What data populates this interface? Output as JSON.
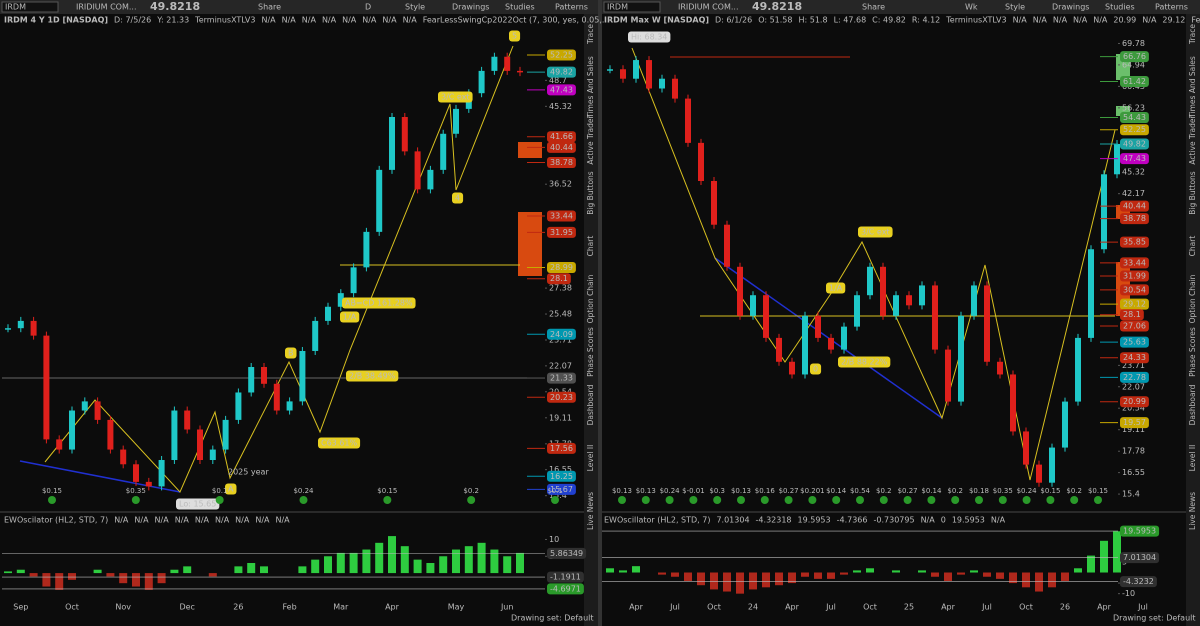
{
  "toolbars": [
    {
      "symbol": "IRDM",
      "company": "IRIDIUM COM...",
      "price": "49.8218",
      "buttons": [
        "Share",
        "D",
        "Style",
        "Drawings",
        "Studies",
        "Patterns"
      ]
    },
    {
      "symbol": "IRDM",
      "company": "IRIDIUM COM...",
      "price": "49.8218",
      "buttons": [
        "Share",
        "Wk",
        "Style",
        "Drawings",
        "Studies",
        "Patterns"
      ]
    }
  ],
  "side_tabs": [
    "Trace",
    "Times And Sales",
    "Active Trader",
    "Big Buttons",
    "Chart",
    "Option Chain",
    "Phase Scores",
    "Dashboard",
    "Level II",
    "Live News"
  ],
  "footer": "Drawing set: Default",
  "chart_data": [
    {
      "type": "candlestick",
      "title": "IRDM 4 Y 1D [NASDAQ]",
      "readouts": [
        "D: 7/5/26",
        "Y: 21.33",
        "TerminusXTLV3",
        "N/A",
        "N/A",
        "N/A",
        "N/A",
        "N/A",
        "N/A",
        "N/A",
        "N/A",
        "FearLessSwingCp2022Oct (7, 300, yes, 0.05,..."
      ],
      "categories": [
        null,
        "Sep",
        null,
        null,
        null,
        "Oct",
        null,
        null,
        null,
        "Nov",
        null,
        null,
        null,
        null,
        "Dec",
        null,
        null,
        null,
        "26",
        null,
        null,
        null,
        "Feb",
        null,
        null,
        null,
        "Mar",
        null,
        null,
        null,
        "Apr",
        null,
        null,
        null,
        null,
        "May",
        null,
        null,
        null,
        "Jun",
        null
      ],
      "values": [
        24.5,
        25,
        24,
        18,
        17.5,
        19.5,
        20,
        19,
        17.5,
        16.8,
        16,
        15.8,
        17,
        19.5,
        18.5,
        17,
        17.5,
        19,
        20.5,
        22,
        21,
        19.5,
        20,
        23,
        25,
        26,
        27,
        29,
        32,
        38,
        44,
        40,
        36,
        38,
        42,
        45,
        47,
        50,
        52,
        50,
        49.82
      ],
      "up_color": "#1fc8c8",
      "down_color": "#e0201c",
      "log_scale": true,
      "ylim": [
        14.8,
        56
      ],
      "yticks": [
        15.4,
        16.55,
        17.78,
        19.11,
        20.54,
        22.07,
        23.71,
        25.48,
        27.38,
        36.52,
        45.32,
        48.7
      ],
      "price_labels": [
        {
          "value": 52.25,
          "color": "#c8a800"
        },
        {
          "value": 49.82,
          "color": "#1aa3a3"
        },
        {
          "value": 47.43,
          "color": "#c000c0"
        },
        {
          "value": 41.66,
          "color": "#c02810"
        },
        {
          "value": 40.44,
          "color": "#c02810"
        },
        {
          "value": 38.78,
          "color": "#c02810"
        },
        {
          "value": 33.44,
          "color": "#c02810"
        },
        {
          "value": 31.95,
          "color": "#c02810"
        },
        {
          "value": 28.99,
          "color": "#c8a800"
        },
        {
          "value": 28.1,
          "color": "#c02810"
        },
        {
          "value": 24.09,
          "color": "#0098b0"
        },
        {
          "value": 21.33,
          "color": "#505050"
        },
        {
          "value": 20.23,
          "color": "#c02810"
        },
        {
          "value": 17.56,
          "color": "#c02810"
        },
        {
          "value": 16.25,
          "color": "#0098b0"
        },
        {
          "value": 15.67,
          "color": "#2040d0"
        }
      ],
      "annotations": [
        "5",
        "3/C ext",
        "4",
        "AB=CD 161.28%",
        "1/A",
        "2/B 38.49%",
        "B",
        "C63.61%",
        "A",
        "Lo: 15.65",
        "2025 year"
      ],
      "dividends": [
        "$0.15",
        "$0.35",
        "$0.1",
        "$0.24",
        "$0.15",
        "$0.2",
        "$0.1"
      ],
      "oscillator": {
        "title": "EWOscilator (HL2, STD, 7)",
        "readouts": [
          "N/A",
          "N/A",
          "N/A",
          "N/A",
          "N/A",
          "N/A",
          "N/A",
          "N/A",
          "N/A"
        ],
        "values": [
          0.5,
          1,
          -1,
          -4,
          -5,
          -2,
          0,
          1,
          -1,
          -3,
          -4,
          -5,
          -3,
          1,
          2,
          0,
          -1,
          0,
          2,
          3,
          2,
          0,
          0,
          2,
          4,
          5,
          6,
          6,
          7,
          9,
          11,
          8,
          4,
          3,
          5,
          7,
          8,
          9,
          7,
          5,
          6
        ],
        "up_color": "#2ecc40",
        "down_color": "#b0281c",
        "ylim": [
          -8,
          14
        ],
        "yticks": [
          10,
          5
        ],
        "axis_labels": [
          {
            "value": 5.86349,
            "color": "#303030"
          },
          {
            "value": -1.1911,
            "color": "#303030"
          },
          {
            "value": -4.6971,
            "color": "#2a9a2a"
          }
        ]
      }
    },
    {
      "type": "candlestick",
      "title": "IRDM Max W [NASDAQ]",
      "readouts": [
        "D: 6/1/26",
        "O: 51.58",
        "H: 51.8",
        "L: 47.68",
        "C: 49.82",
        "R: 4.12",
        "TerminusXTLV3",
        "N/A",
        "N/A",
        "N/A",
        "N/A",
        "N/A",
        "20.99",
        "N/A",
        "29.12",
        "Fear..."
      ],
      "categories": [
        null,
        null,
        "Apr",
        null,
        null,
        "Jul",
        null,
        null,
        "Oct",
        null,
        null,
        "24",
        null,
        null,
        "Apr",
        null,
        null,
        "Jul",
        null,
        null,
        "Oct",
        null,
        null,
        "25",
        null,
        null,
        "Apr",
        null,
        null,
        "Jul",
        null,
        null,
        "Oct",
        null,
        null,
        "26",
        null,
        null,
        "Apr",
        null,
        null,
        "Jul"
      ],
      "values": [
        64,
        62,
        66,
        60,
        62,
        58,
        50,
        44,
        38,
        33,
        28,
        30,
        26,
        24,
        23,
        28,
        26,
        25,
        27,
        30,
        33,
        28,
        30,
        29,
        31,
        25,
        21,
        28,
        31,
        24,
        23,
        19,
        17,
        16,
        18,
        21,
        26,
        35,
        45,
        49.82,
        null,
        null
      ],
      "up_color": "#1fc8c8",
      "down_color": "#e0201c",
      "log_scale": true,
      "ylim": [
        14.6,
        73
      ],
      "yticks": [
        15.4,
        16.55,
        17.78,
        19.11,
        20.54,
        22.07,
        23.71,
        42.17,
        45.32,
        56.23,
        60.43,
        64.94,
        69.78
      ],
      "price_labels": [
        {
          "value": 66.76,
          "color": "#3d9a3d"
        },
        {
          "value": 61.42,
          "color": "#3d9a3d"
        },
        {
          "value": 54.43,
          "color": "#3d9a3d"
        },
        {
          "value": 52.25,
          "color": "#c8a800"
        },
        {
          "value": 49.82,
          "color": "#1aa3a3"
        },
        {
          "value": 47.43,
          "color": "#c000c0"
        },
        {
          "value": 40.44,
          "color": "#c02810"
        },
        {
          "value": 38.78,
          "color": "#c02810"
        },
        {
          "value": 35.85,
          "color": "#c02810"
        },
        {
          "value": 33.44,
          "color": "#c02810"
        },
        {
          "value": 31.99,
          "color": "#c02810"
        },
        {
          "value": 30.54,
          "color": "#c02810"
        },
        {
          "value": 29.12,
          "color": "#c8a800"
        },
        {
          "value": 28.1,
          "color": "#c02810"
        },
        {
          "value": 27.06,
          "color": "#c02810"
        },
        {
          "value": 25.63,
          "color": "#0098b0"
        },
        {
          "value": 24.33,
          "color": "#c02810"
        },
        {
          "value": 22.78,
          "color": "#0098b0"
        },
        {
          "value": 20.99,
          "color": "#c02810"
        },
        {
          "value": 19.57,
          "color": "#c8a800"
        }
      ],
      "annotations": [
        "Hi: 68.34",
        "3/C ext",
        "1/A",
        "0",
        "2/B 88.22%"
      ],
      "dividends": [
        "$0.13",
        "$0.13",
        "$0.24",
        "$-0.01",
        "$0.3",
        "$0.13",
        "$0.16",
        "$0.27",
        "$0.201",
        "$0.14",
        "$0.54",
        "$0.2",
        "$0.27",
        "$0.14",
        "$0.2",
        "$0.18",
        "$0.35",
        "$0.24",
        "$0.15",
        "$0.2",
        "$0.15"
      ],
      "oscillator": {
        "title": "EWOscillator (HL2, STD, 7)",
        "readouts": [
          "7.01304",
          "-4.32318",
          "19.5953",
          "-4.7366",
          "-0.730795",
          "N/A",
          "0",
          "19.5953",
          "N/A"
        ],
        "values": [
          2,
          1,
          3,
          0,
          -1,
          -2,
          -4,
          -6,
          -8,
          -9,
          -10,
          -8,
          -7,
          -6,
          -5,
          -2,
          -3,
          -3,
          -1,
          1,
          2,
          0,
          1,
          0,
          1,
          -2,
          -4,
          -1,
          1,
          -2,
          -3,
          -5,
          -7,
          -9,
          -7,
          -4,
          2,
          8,
          15,
          19.5,
          null,
          null
        ],
        "up_color": "#2ecc40",
        "down_color": "#b0281c",
        "ylim": [
          -13,
          22
        ],
        "yticks": [
          5,
          -5,
          -10
        ],
        "axis_labels": [
          {
            "value": 19.5953,
            "color": "#2a9a2a"
          },
          {
            "value": 7.01304,
            "color": "#303030"
          },
          {
            "value": -4.3232,
            "color": "#303030"
          }
        ]
      }
    }
  ]
}
